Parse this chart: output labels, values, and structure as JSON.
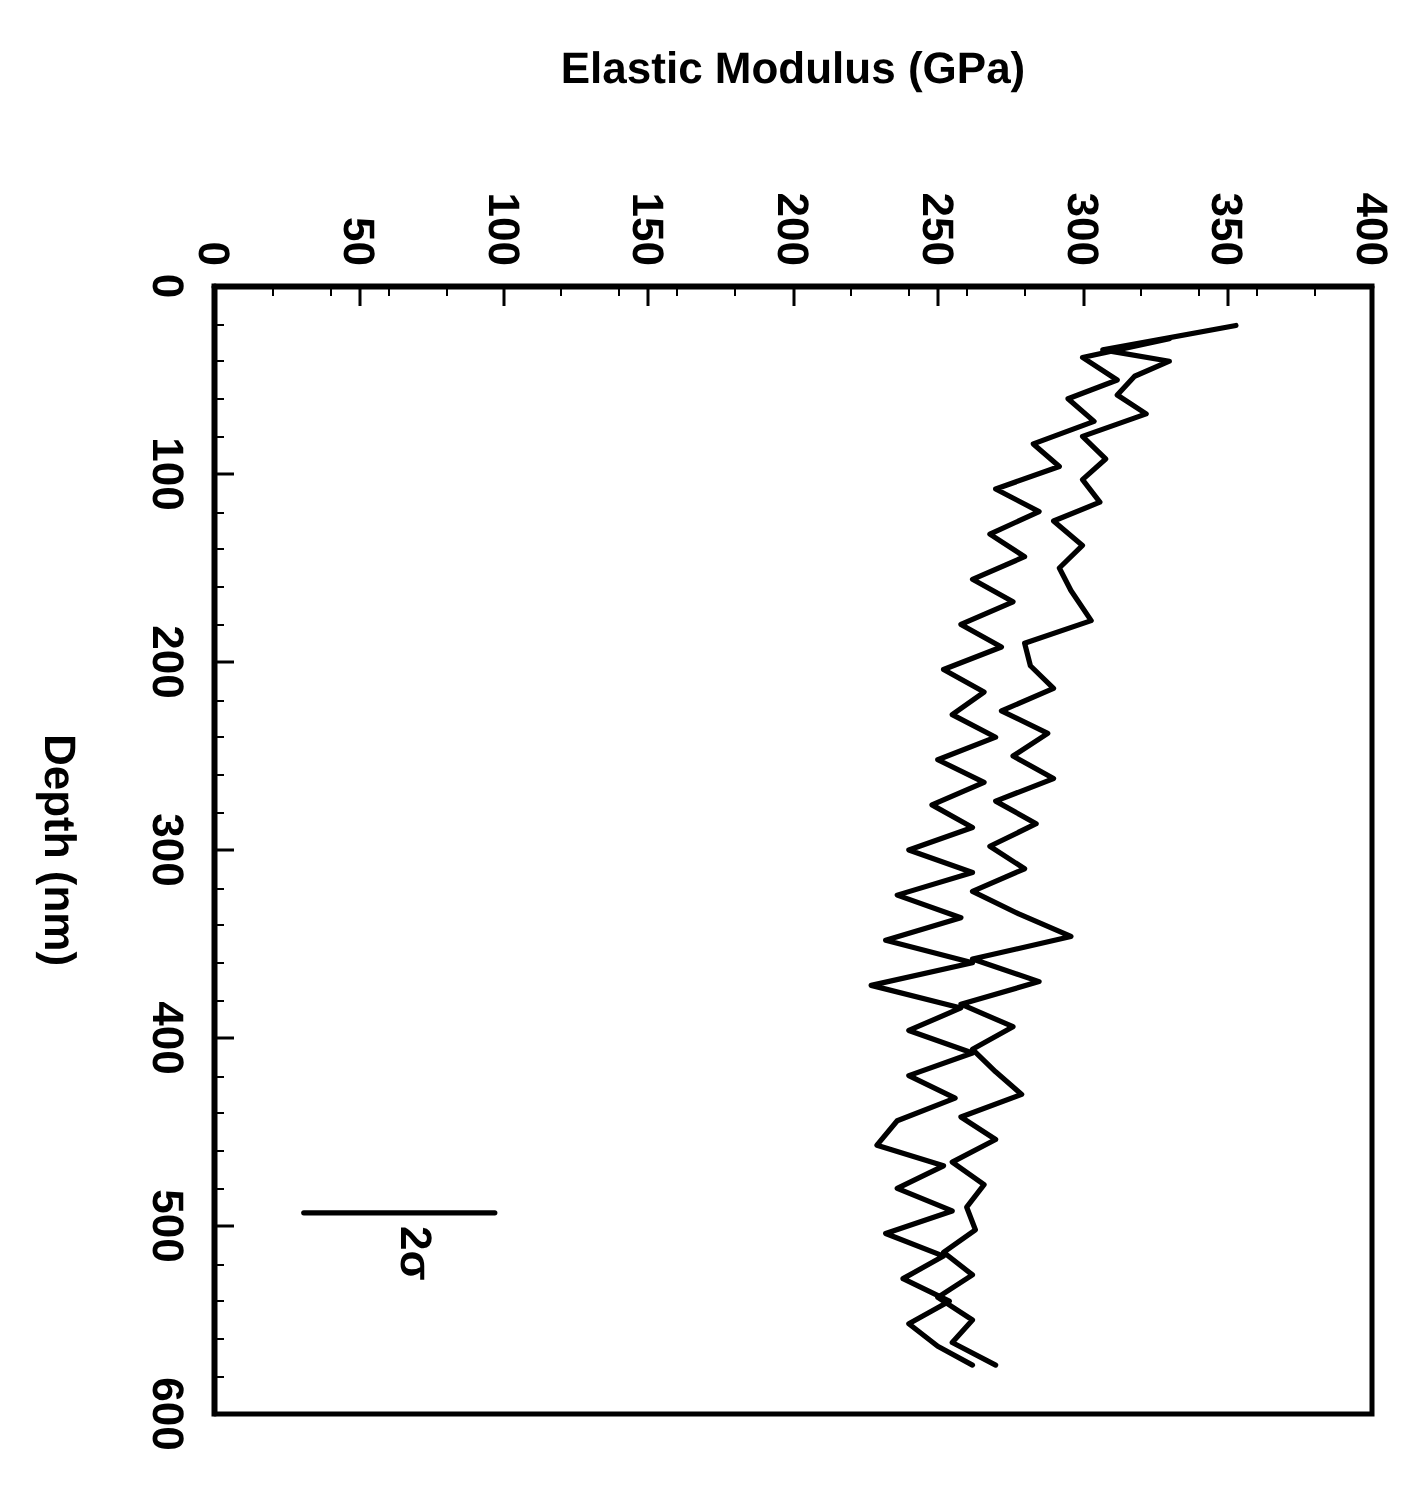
{
  "chart_data": {
    "type": "line",
    "xlabel": "Elastic Modulus (GPa)",
    "ylabel": "Depth (nm)",
    "xlim": [
      0,
      400
    ],
    "xticks": [
      0,
      50,
      100,
      150,
      200,
      250,
      300,
      350,
      400
    ],
    "ylim": [
      600,
      0
    ],
    "yticks": [
      0,
      100,
      200,
      300,
      400,
      500,
      600
    ],
    "grid": false,
    "marker": "none",
    "line_style": "solid",
    "series": [
      {
        "color": "#000000",
        "values": [
          21,
          34,
          40,
          48,
          58,
          68,
          80,
          92,
          103,
          115,
          125,
          138,
          150,
          162,
          178,
          190,
          202,
          214,
          226,
          238,
          250,
          262,
          274,
          286,
          298,
          310,
          322,
          334,
          346,
          358,
          370,
          382,
          394,
          406,
          418,
          430,
          442,
          454,
          466,
          478,
          490,
          502,
          514,
          526,
          538,
          550,
          562,
          574
        ],
        "x": [
          353,
          307,
          330,
          318,
          312,
          322,
          300,
          308,
          300,
          306,
          290,
          300,
          292,
          296,
          303,
          280,
          282,
          290,
          272,
          288,
          276,
          290,
          270,
          284,
          268,
          280,
          262,
          278,
          296,
          262,
          285,
          258,
          276,
          262,
          270,
          279,
          258,
          270,
          255,
          266,
          260,
          263,
          252,
          262,
          250,
          262,
          255,
          270
        ]
      },
      {
        "color": "#000000",
        "values": [
          28,
          38,
          50,
          60,
          72,
          84,
          96,
          108,
          120,
          132,
          144,
          156,
          168,
          180,
          192,
          204,
          216,
          228,
          240,
          252,
          264,
          276,
          288,
          300,
          312,
          324,
          336,
          348,
          360,
          372,
          384,
          396,
          408,
          420,
          432,
          444,
          457,
          468,
          480,
          492,
          504,
          516,
          528,
          540,
          552,
          564,
          574
        ],
        "x": [
          330,
          300,
          312,
          295,
          304,
          283,
          292,
          270,
          285,
          268,
          280,
          262,
          276,
          258,
          272,
          252,
          266,
          255,
          270,
          250,
          266,
          248,
          262,
          240,
          262,
          236,
          258,
          232,
          262,
          227,
          258,
          240,
          262,
          240,
          256,
          236,
          229,
          252,
          236,
          255,
          232,
          252,
          238,
          254,
          240,
          250,
          262
        ]
      },
      {
        "color": "#000000",
        "x": [
          31,
          97
        ],
        "values": [
          493,
          493
        ]
      }
    ],
    "annotations": [
      "2σ"
    ]
  }
}
